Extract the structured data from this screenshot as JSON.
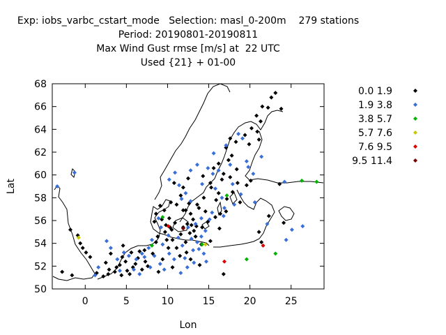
{
  "header": {
    "line1": "Exp: iobs_varbc_cstart_mode   Selection: masl_0-200m    279 stations",
    "line2": "Period: 20190801-20190811",
    "line3": "Max Wind Gust rmse [m/s] at  22 UTC",
    "line4": "Used {21} + 01-00"
  },
  "chart_data": {
    "type": "scatter",
    "xlabel": "Lon",
    "ylabel": "Lat",
    "xlim": [
      -4,
      29
    ],
    "ylim": [
      50,
      68
    ],
    "xticks": [
      "0",
      "5",
      "10",
      "15",
      "20",
      "25"
    ],
    "yticks": [
      "50",
      "52",
      "54",
      "56",
      "58",
      "60",
      "62",
      "64",
      "66",
      "68"
    ],
    "grid": false,
    "legend_position": "right",
    "series": [
      {
        "name": "0.0 1.9",
        "color": "#000000",
        "points": [
          [
            23.1,
            67.2
          ],
          [
            22.6,
            66.8
          ],
          [
            21.5,
            66.0
          ],
          [
            22.2,
            65.9
          ],
          [
            23.8,
            65.8
          ],
          [
            20.8,
            65.2
          ],
          [
            21.3,
            64.7
          ],
          [
            20.2,
            64.1
          ],
          [
            20.9,
            63.8
          ],
          [
            19.4,
            63.5
          ],
          [
            17.6,
            63.2
          ],
          [
            18.3,
            62.9
          ],
          [
            17.1,
            62.4
          ],
          [
            17.4,
            61.3
          ],
          [
            16.2,
            61.0
          ],
          [
            15.6,
            60.6
          ],
          [
            16.8,
            60.1
          ],
          [
            17.6,
            59.8
          ],
          [
            18.5,
            59.3
          ],
          [
            16.6,
            59.6
          ],
          [
            15.2,
            59.3
          ],
          [
            17.9,
            58.5
          ],
          [
            16.2,
            58.4
          ],
          [
            14.4,
            58.0
          ],
          [
            15.9,
            57.8
          ],
          [
            13.6,
            57.4
          ],
          [
            12.6,
            57.5
          ],
          [
            11.9,
            56.9
          ],
          [
            12.8,
            56.6
          ],
          [
            14.6,
            56.8
          ],
          [
            15.8,
            56.3
          ],
          [
            16.4,
            56.6
          ],
          [
            13.1,
            56.1
          ],
          [
            13.5,
            55.5
          ],
          [
            12.9,
            55.6
          ],
          [
            12.4,
            55.7
          ],
          [
            11.9,
            55.4
          ],
          [
            10.9,
            55.8
          ],
          [
            10.3,
            55.4
          ],
          [
            9.8,
            55.6
          ],
          [
            10.2,
            56.2
          ],
          [
            9.6,
            56.9
          ],
          [
            8.6,
            56.6
          ],
          [
            9.1,
            57.3
          ],
          [
            10.4,
            57.6
          ],
          [
            11.1,
            57.4
          ],
          [
            8.4,
            55.9
          ],
          [
            11.6,
            54.8
          ],
          [
            12.2,
            54.1
          ],
          [
            13.4,
            54.6
          ],
          [
            14.1,
            53.9
          ],
          [
            11.1,
            53.6
          ],
          [
            10.1,
            53.6
          ],
          [
            9.9,
            54.3
          ],
          [
            8.6,
            54.1
          ],
          [
            9.4,
            52.6
          ],
          [
            8.2,
            53.1
          ],
          [
            7.2,
            53.4
          ],
          [
            6.6,
            53.3
          ],
          [
            7.3,
            52.4
          ],
          [
            6.4,
            52.7
          ],
          [
            5.6,
            53.2
          ],
          [
            4.9,
            52.4
          ],
          [
            4.2,
            52.1
          ],
          [
            3.6,
            51.5
          ],
          [
            4.4,
            51.2
          ],
          [
            5.1,
            51.6
          ],
          [
            5.8,
            51.9
          ],
          [
            2.8,
            51.3
          ],
          [
            2.2,
            51.1
          ],
          [
            1.4,
            51.4
          ],
          [
            0.6,
            52.8
          ],
          [
            0.1,
            53.2
          ],
          [
            -0.3,
            53.6
          ],
          [
            -0.6,
            54.0
          ],
          [
            -0.9,
            54.7
          ],
          [
            -1.8,
            55.2
          ],
          [
            -2.8,
            51.5
          ],
          [
            -1.6,
            51.2
          ],
          [
            2.5,
            52.3
          ],
          [
            3.1,
            53.1
          ],
          [
            4.6,
            53.8
          ],
          [
            6.1,
            52.2
          ],
          [
            8.9,
            51.5
          ],
          [
            10.6,
            51.9
          ],
          [
            12.8,
            52.6
          ],
          [
            13.9,
            52.1
          ],
          [
            16.8,
            51.3
          ],
          [
            15.2,
            54.2
          ],
          [
            17.1,
            56.8
          ],
          [
            18.8,
            57.6
          ],
          [
            21.4,
            54.1
          ],
          [
            24.1,
            55.8
          ],
          [
            22.3,
            56.4
          ],
          [
            21.1,
            55.0
          ],
          [
            19.6,
            59.1
          ],
          [
            20.1,
            59.5
          ],
          [
            23.6,
            59.2
          ],
          [
            14.2,
            55.4
          ],
          [
            13.2,
            55.1
          ],
          [
            12.3,
            53.2
          ],
          [
            11.5,
            52.9
          ],
          [
            9.7,
            55.0
          ],
          [
            10.6,
            54.3
          ],
          [
            8.8,
            54.6
          ],
          [
            7.6,
            52.0
          ],
          [
            6.9,
            51.7
          ],
          [
            5.4,
            51.3
          ],
          [
            4.5,
            52.8
          ],
          [
            3.8,
            51.9
          ],
          [
            2.9,
            51.7
          ],
          [
            12.2,
            56.9
          ],
          [
            11.6,
            58.2
          ],
          [
            11.9,
            58.9
          ],
          [
            10.8,
            59.3
          ],
          [
            12.5,
            59.7
          ],
          [
            14.3,
            59.9
          ],
          [
            18.4,
            60.5
          ],
          [
            17.8,
            61.7
          ],
          [
            19.9,
            62.7
          ],
          [
            21.1,
            63.1
          ],
          [
            16.3,
            55.3
          ],
          [
            14.9,
            55.9
          ],
          [
            13.8,
            57.1
          ],
          [
            15.3,
            58.9
          ],
          [
            17.2,
            57.9
          ],
          [
            9.3,
            56.1
          ],
          [
            12.7,
            54.9
          ],
          [
            10.5,
            55.2
          ]
        ]
      },
      {
        "name": "1.9 3.8",
        "color": "#3a6fd8",
        "points": [
          [
            19.8,
            60.7
          ],
          [
            18.6,
            63.6
          ],
          [
            19.1,
            63.2
          ],
          [
            17.6,
            60.9
          ],
          [
            16.2,
            60.4
          ],
          [
            15.5,
            60.1
          ],
          [
            14.9,
            60.6
          ],
          [
            14.2,
            59.2
          ],
          [
            15.8,
            58.8
          ],
          [
            16.6,
            58.0
          ],
          [
            18.1,
            57.4
          ],
          [
            16.9,
            57.1
          ],
          [
            15.4,
            56.7
          ],
          [
            14.1,
            56.2
          ],
          [
            12.8,
            57.7
          ],
          [
            11.7,
            57.9
          ],
          [
            12.2,
            58.4
          ],
          [
            11.4,
            59.1
          ],
          [
            10.2,
            59.6
          ],
          [
            10.9,
            60.2
          ],
          [
            12.8,
            60.4
          ],
          [
            13.6,
            60.9
          ],
          [
            15.6,
            61.9
          ],
          [
            17.1,
            62.6
          ],
          [
            19.6,
            61.2
          ],
          [
            21.4,
            61.6
          ],
          [
            20.4,
            60.1
          ],
          [
            17.9,
            59.2
          ],
          [
            18.9,
            58.3
          ],
          [
            20.6,
            57.6
          ],
          [
            24.2,
            59.4
          ],
          [
            25.1,
            55.2
          ],
          [
            26.4,
            55.5
          ],
          [
            24.4,
            54.3
          ],
          [
            22.1,
            55.7
          ],
          [
            -3.4,
            59.0
          ],
          [
            -1.3,
            60.2
          ],
          [
            9.1,
            52.2
          ],
          [
            8.4,
            52.9
          ],
          [
            7.7,
            53.6
          ],
          [
            6.9,
            53.1
          ],
          [
            6.2,
            52.6
          ],
          [
            5.3,
            52.9
          ],
          [
            4.7,
            53.2
          ],
          [
            3.9,
            52.6
          ],
          [
            3.1,
            53.6
          ],
          [
            2.6,
            54.2
          ],
          [
            1.6,
            51.9
          ],
          [
            6.6,
            51.3
          ],
          [
            7.9,
            51.9
          ],
          [
            9.6,
            51.7
          ],
          [
            10.8,
            52.6
          ],
          [
            11.6,
            51.4
          ],
          [
            12.4,
            51.9
          ],
          [
            13.1,
            53.4
          ],
          [
            13.6,
            54.1
          ],
          [
            14.4,
            53.1
          ],
          [
            14.7,
            52.4
          ],
          [
            11.3,
            54.5
          ],
          [
            10.1,
            54.7
          ],
          [
            9.2,
            55.4
          ],
          [
            8.9,
            56.2
          ],
          [
            12.5,
            55.4
          ],
          [
            13.4,
            55.7
          ],
          [
            14.6,
            55.1
          ],
          [
            15.1,
            56.1
          ],
          [
            16.8,
            56.4
          ],
          [
            13.2,
            52.3
          ],
          [
            12.1,
            52.7
          ],
          [
            10.2,
            53.1
          ],
          [
            9.4,
            53.9
          ],
          [
            8.1,
            54.3
          ],
          [
            1.2,
            51.2
          ],
          [
            4.2,
            51.6
          ],
          [
            5.9,
            51.7
          ],
          [
            7.2,
            52.8
          ],
          [
            14.1,
            54.6
          ],
          [
            13.8,
            53.5
          ],
          [
            12.9,
            54.4
          ],
          [
            11.8,
            53.8
          ]
        ]
      },
      {
        "name": "3.8 5.7",
        "color": "#00b400",
        "points": [
          [
            26.3,
            59.5
          ],
          [
            28.1,
            59.4
          ],
          [
            17.2,
            58.2
          ],
          [
            19.6,
            52.6
          ],
          [
            23.1,
            53.1
          ],
          [
            9.4,
            56.3
          ],
          [
            8.1,
            53.8
          ],
          [
            14.2,
            53.9
          ]
        ]
      },
      {
        "name": "5.7 7.6",
        "color": "#c8c800",
        "points": [
          [
            -0.8,
            54.5
          ],
          [
            14.6,
            53.9
          ]
        ]
      },
      {
        "name": "7.6 9.5",
        "color": "#dc0000",
        "points": [
          [
            16.9,
            52.4
          ],
          [
            21.6,
            53.8
          ],
          [
            10.1,
            55.5
          ]
        ]
      },
      {
        "name": "9.5 11.4",
        "color": "#780000",
        "points": [
          [
            11.9,
            55.3
          ]
        ]
      }
    ]
  }
}
